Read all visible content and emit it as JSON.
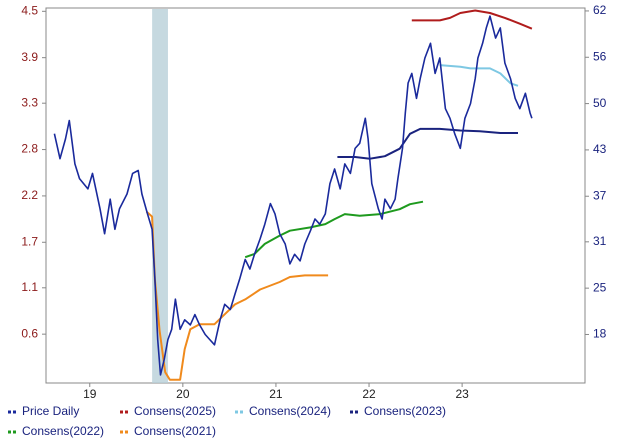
{
  "chart_data": {
    "type": "line",
    "xlim": [
      2019.03,
      2024.82
    ],
    "xticks": [
      {
        "value": 2019.5,
        "label": "19"
      },
      {
        "value": 2020.5,
        "label": "20"
      },
      {
        "value": 2021.5,
        "label": "21"
      },
      {
        "value": 2022.5,
        "label": "22"
      },
      {
        "value": 2023.5,
        "label": "23"
      }
    ],
    "ylim": [
      -0.03,
      4.5
    ],
    "yticks": [
      {
        "value": 0.56,
        "label": "0.6"
      },
      {
        "value": 1.12,
        "label": "1.1"
      },
      {
        "value": 1.67,
        "label": "1.7"
      },
      {
        "value": 2.23,
        "label": "2.2"
      },
      {
        "value": 2.79,
        "label": "2.8"
      },
      {
        "value": 3.35,
        "label": "3.3"
      },
      {
        "value": 3.9,
        "label": "3.9"
      },
      {
        "value": 4.46,
        "label": "4.5"
      }
    ],
    "y2lim": [
      11.7,
      62.7
    ],
    "y2ticks": [
      {
        "value": 18.3,
        "label": "18"
      },
      {
        "value": 24.6,
        "label": "25"
      },
      {
        "value": 30.9,
        "label": "31"
      },
      {
        "value": 37.1,
        "label": "37"
      },
      {
        "value": 43.4,
        "label": "43"
      },
      {
        "value": 49.7,
        "label": "50"
      },
      {
        "value": 56.0,
        "label": "56"
      },
      {
        "value": 62.3,
        "label": "62"
      }
    ],
    "shaded": [
      2020.17,
      2020.34
    ],
    "shaded_color": "#b8d0d8",
    "series": [
      {
        "name": "Price Daily",
        "color": "#1a2a9c",
        "axis": "y2",
        "x": [
          2019.12,
          2019.18,
          2019.24,
          2019.28,
          2019.34,
          2019.39,
          2019.48,
          2019.53,
          2019.61,
          2019.66,
          2019.72,
          2019.77,
          2019.82,
          2019.9,
          2019.96,
          2020.02,
          2020.06,
          2020.12,
          2020.17,
          2020.2,
          2020.23,
          2020.26,
          2020.3,
          2020.34,
          2020.38,
          2020.42,
          2020.47,
          2020.52,
          2020.58,
          2020.63,
          2020.68,
          2020.74,
          2020.79,
          2020.84,
          2020.9,
          2020.95,
          2021.01,
          2021.06,
          2021.11,
          2021.17,
          2021.22,
          2021.27,
          2021.33,
          2021.38,
          2021.44,
          2021.49,
          2021.54,
          2021.6,
          2021.65,
          2021.7,
          2021.76,
          2021.81,
          2021.87,
          2021.92,
          2021.97,
          2022.03,
          2022.08,
          2022.13,
          2022.19,
          2022.24,
          2022.3,
          2022.35,
          2022.4,
          2022.46,
          2022.49,
          2022.53,
          2022.6,
          2022.64,
          2022.67,
          2022.73,
          2022.78,
          2022.81,
          2022.86,
          2022.89,
          2022.92,
          2022.96,
          2023.01,
          2023.05,
          2023.1,
          2023.16,
          2023.21,
          2023.26,
          2023.32,
          2023.37,
          2023.42,
          2023.48,
          2023.53,
          2023.59,
          2023.64,
          2023.67,
          2023.72,
          2023.76,
          2023.8,
          2023.86,
          2023.91,
          2023.96,
          2024.02,
          2024.07,
          2024.12,
          2024.18,
          2024.23,
          2024.25
        ],
        "values": [
          45.6,
          42.2,
          44.9,
          47.4,
          41.5,
          39.5,
          38.1,
          40.2,
          35.4,
          32.0,
          36.7,
          32.6,
          35.4,
          37.4,
          40.2,
          40.6,
          37.4,
          34.7,
          32.6,
          25.8,
          17.6,
          12.8,
          14.9,
          17.6,
          19.0,
          23.1,
          19.0,
          20.3,
          19.6,
          21.0,
          19.6,
          18.3,
          17.6,
          16.9,
          20.3,
          22.4,
          21.7,
          23.8,
          25.8,
          28.5,
          27.2,
          29.2,
          31.3,
          33.3,
          36.1,
          34.7,
          32.0,
          30.6,
          27.9,
          29.2,
          28.3,
          30.6,
          32.4,
          34.0,
          33.3,
          34.7,
          38.8,
          40.8,
          38.1,
          41.5,
          40.2,
          43.6,
          44.3,
          47.7,
          44.9,
          38.8,
          35.4,
          34.0,
          36.7,
          35.4,
          36.7,
          39.5,
          43.6,
          48.4,
          52.5,
          53.8,
          50.4,
          53.1,
          55.9,
          57.9,
          53.8,
          55.9,
          49.0,
          47.7,
          45.6,
          43.6,
          47.7,
          49.7,
          53.1,
          55.9,
          57.9,
          60.0,
          61.6,
          58.6,
          60.0,
          55.2,
          53.1,
          50.4,
          49.0,
          51.1,
          48.4,
          47.7
        ]
      },
      {
        "name": "Consens(2025)",
        "color": "#b01c1c",
        "axis": "y",
        "x": [
          2022.96,
          2023.26,
          2023.37,
          2023.48,
          2023.64,
          2023.8,
          2023.96,
          2024.12,
          2024.25
        ],
        "values": [
          4.35,
          4.35,
          4.38,
          4.44,
          4.47,
          4.44,
          4.38,
          4.31,
          4.25
        ]
      },
      {
        "name": "Consens(2024)",
        "color": "#7ec8e3",
        "axis": "y",
        "x": [
          2023.26,
          2023.48,
          2023.59,
          2023.8,
          2023.91,
          2024.02,
          2024.1
        ],
        "values": [
          3.81,
          3.79,
          3.77,
          3.77,
          3.71,
          3.59,
          3.56
        ]
      },
      {
        "name": "Consens(2023)",
        "color": "#1a237e",
        "axis": "y",
        "x": [
          2022.16,
          2022.35,
          2022.51,
          2022.67,
          2022.83,
          2022.94,
          2023.05,
          2023.26,
          2023.48,
          2023.69,
          2023.91,
          2024.1
        ],
        "values": [
          2.7,
          2.7,
          2.68,
          2.71,
          2.8,
          2.98,
          3.04,
          3.04,
          3.02,
          3.01,
          2.99,
          2.99
        ]
      },
      {
        "name": "Consens(2022)",
        "color": "#1e9a1e",
        "axis": "y",
        "x": [
          2021.17,
          2021.27,
          2021.38,
          2021.54,
          2021.65,
          2021.87,
          2022.03,
          2022.13,
          2022.24,
          2022.4,
          2022.62,
          2022.83,
          2022.94,
          2023.08
        ],
        "values": [
          1.49,
          1.53,
          1.65,
          1.75,
          1.81,
          1.85,
          1.89,
          1.95,
          2.01,
          1.99,
          2.01,
          2.07,
          2.13,
          2.16
        ]
      },
      {
        "name": "Consens(2021)",
        "color": "#f08a1c",
        "axis": "y",
        "x": [
          2020.11,
          2020.17,
          2020.2,
          2020.25,
          2020.31,
          2020.36,
          2020.47,
          2020.52,
          2020.58,
          2020.68,
          2020.84,
          2020.95,
          2021.06,
          2021.17,
          2021.33,
          2021.54,
          2021.65,
          2021.81,
          2022.06
        ],
        "values": [
          2.04,
          1.98,
          1.22,
          0.6,
          0.1,
          0.01,
          0.01,
          0.38,
          0.62,
          0.68,
          0.68,
          0.8,
          0.92,
          0.98,
          1.1,
          1.19,
          1.25,
          1.27,
          1.27
        ]
      }
    ]
  }
}
